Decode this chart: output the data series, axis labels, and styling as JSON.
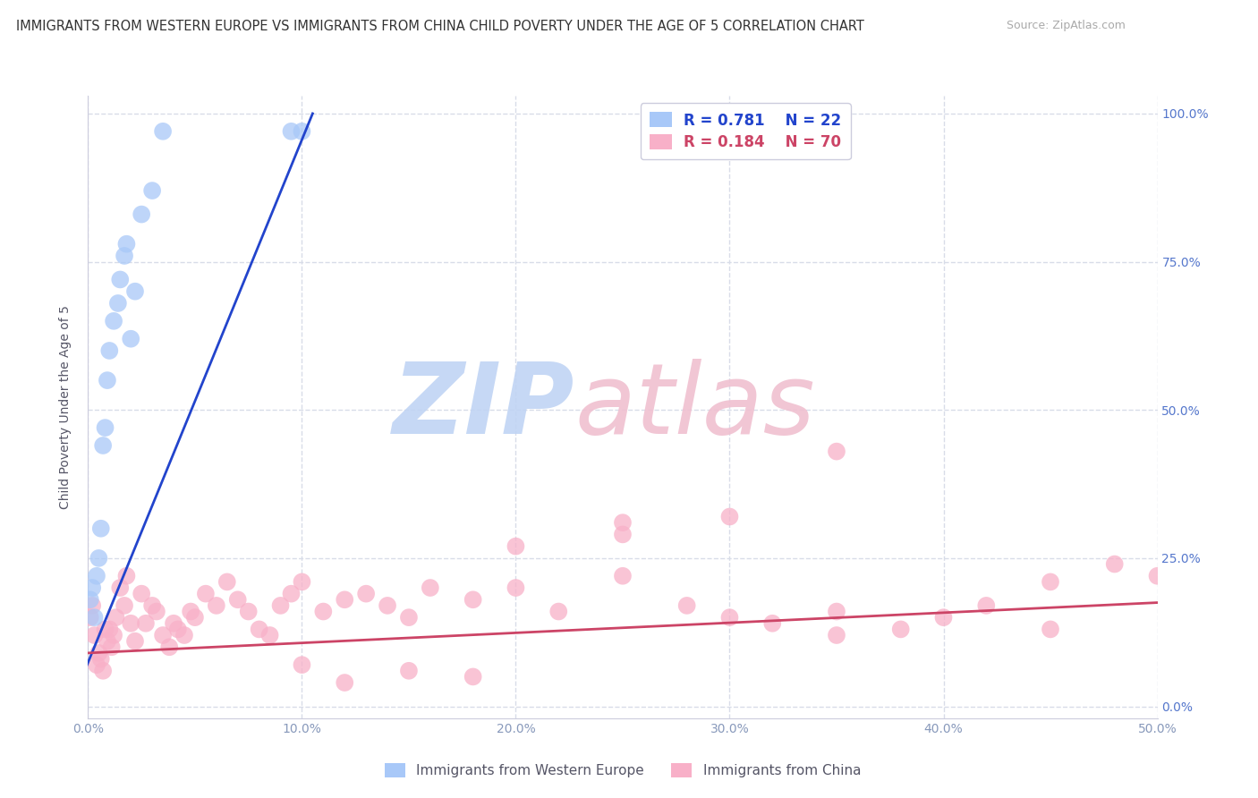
{
  "title": "IMMIGRANTS FROM WESTERN EUROPE VS IMMIGRANTS FROM CHINA CHILD POVERTY UNDER THE AGE OF 5 CORRELATION CHART",
  "source": "Source: ZipAtlas.com",
  "ylabel": "Child Poverty Under the Age of 5",
  "xlim": [
    0.0,
    50.0
  ],
  "ylim": [
    -2.0,
    103.0
  ],
  "xticks": [
    0.0,
    10.0,
    20.0,
    30.0,
    40.0,
    50.0
  ],
  "xtick_labels": [
    "0.0%",
    "10.0%",
    "20.0%",
    "30.0%",
    "40.0%",
    "50.0%"
  ],
  "yticks": [
    0.0,
    25.0,
    50.0,
    75.0,
    100.0
  ],
  "ytick_labels_right": [
    "0.0%",
    "25.0%",
    "50.0%",
    "75.0%",
    "100.0%"
  ],
  "background_color": "#ffffff",
  "grid_color": "#d8dce8",
  "title_color": "#333333",
  "legend_R1": "R = 0.781",
  "legend_N1": "N = 22",
  "legend_R2": "R = 0.184",
  "legend_N2": "N = 70",
  "series1_color": "#a8c8f8",
  "series2_color": "#f8b0c8",
  "trendline1_color": "#2244cc",
  "trendline2_color": "#cc4466",
  "series1_label": "Immigrants from Western Europe",
  "series2_label": "Immigrants from China",
  "we_x": [
    0.1,
    0.2,
    0.3,
    0.4,
    0.5,
    0.6,
    0.7,
    0.8,
    0.9,
    1.0,
    1.2,
    1.4,
    1.5,
    1.7,
    1.8,
    2.0,
    2.2,
    2.5,
    3.0,
    3.5,
    9.5,
    10.0
  ],
  "we_y": [
    18.0,
    20.0,
    15.0,
    22.0,
    25.0,
    30.0,
    44.0,
    47.0,
    55.0,
    60.0,
    65.0,
    68.0,
    72.0,
    76.0,
    78.0,
    62.0,
    70.0,
    83.0,
    87.0,
    97.0,
    97.0,
    97.0
  ],
  "ch_x": [
    0.1,
    0.2,
    0.3,
    0.4,
    0.5,
    0.6,
    0.7,
    0.8,
    0.9,
    1.0,
    1.1,
    1.2,
    1.3,
    1.5,
    1.7,
    1.8,
    2.0,
    2.2,
    2.5,
    2.7,
    3.0,
    3.2,
    3.5,
    3.8,
    4.0,
    4.2,
    4.5,
    4.8,
    5.0,
    5.5,
    6.0,
    6.5,
    7.0,
    7.5,
    8.0,
    8.5,
    9.0,
    9.5,
    10.0,
    11.0,
    12.0,
    13.0,
    14.0,
    15.0,
    16.0,
    18.0,
    20.0,
    22.0,
    25.0,
    28.0,
    30.0,
    32.0,
    35.0,
    38.0,
    40.0,
    42.0,
    45.0,
    48.0,
    50.0,
    35.0,
    25.0,
    20.0,
    18.0,
    15.0,
    12.0,
    10.0,
    25.0,
    30.0,
    35.0,
    45.0
  ],
  "ch_y": [
    15.0,
    17.0,
    12.0,
    7.0,
    9.0,
    8.0,
    6.0,
    13.0,
    11.0,
    13.0,
    10.0,
    12.0,
    15.0,
    20.0,
    17.0,
    22.0,
    14.0,
    11.0,
    19.0,
    14.0,
    17.0,
    16.0,
    12.0,
    10.0,
    14.0,
    13.0,
    12.0,
    16.0,
    15.0,
    19.0,
    17.0,
    21.0,
    18.0,
    16.0,
    13.0,
    12.0,
    17.0,
    19.0,
    21.0,
    16.0,
    18.0,
    19.0,
    17.0,
    15.0,
    20.0,
    18.0,
    20.0,
    16.0,
    22.0,
    17.0,
    15.0,
    14.0,
    16.0,
    13.0,
    15.0,
    17.0,
    21.0,
    24.0,
    22.0,
    43.0,
    29.0,
    27.0,
    5.0,
    6.0,
    4.0,
    7.0,
    31.0,
    32.0,
    12.0,
    13.0
  ],
  "we_trend_x": [
    -0.5,
    10.5
  ],
  "we_trend_y": [
    3.0,
    100.0
  ],
  "ch_trend_x": [
    0.0,
    50.0
  ],
  "ch_trend_y": [
    9.0,
    17.5
  ],
  "watermark_zip_color": "#c0d4f4",
  "watermark_atlas_color": "#f0c0d0"
}
